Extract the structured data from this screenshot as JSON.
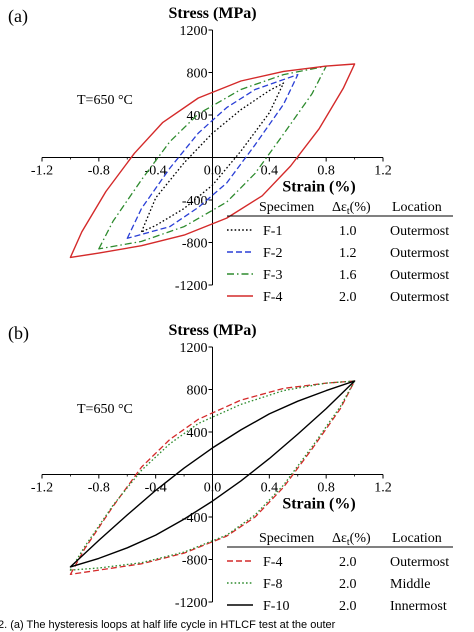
{
  "caption_fragment": "2. (a) The hysteresis loops at half life cycle in HTLCF test at the outer",
  "chart_data": [
    {
      "type": "line",
      "panel_label": "(a)",
      "annotation": "T=650 °C",
      "xlabel": "Strain (%)",
      "ylabel": "Stress (MPa)",
      "xlim": [
        -1.2,
        1.2
      ],
      "ylim": [
        -1200,
        1200
      ],
      "xticks": [
        "-1.2",
        "-0.8",
        "-0.4",
        "0.0",
        "0.4",
        "0.8",
        "1.2"
      ],
      "yticks": [
        "-1200",
        "-800",
        "-400",
        "0",
        "400",
        "800",
        "1200"
      ],
      "legend": {
        "headers": [
          "Specimen",
          "Δε_t(%)",
          "Location"
        ],
        "header_sym": "Δε",
        "header_sub": "t",
        "header_unit": "(%)"
      },
      "series": [
        {
          "name": "F-1",
          "strain_range": "1.0",
          "location": "Outermost",
          "color": "#000000",
          "dash": "dot",
          "top": [
            [
              -0.5,
              -700
            ],
            [
              -0.4,
              -380
            ],
            [
              -0.2,
              -50
            ],
            [
              0.0,
              230
            ],
            [
              0.2,
              450
            ],
            [
              0.4,
              630
            ],
            [
              0.5,
              700
            ]
          ],
          "bottom": [
            [
              0.5,
              700
            ],
            [
              0.4,
              420
            ],
            [
              0.2,
              60
            ],
            [
              0.0,
              -260
            ],
            [
              -0.2,
              -480
            ],
            [
              -0.4,
              -640
            ],
            [
              -0.5,
              -700
            ]
          ]
        },
        {
          "name": "F-2",
          "strain_range": "1.2",
          "location": "Outermost",
          "color": "#2a3fd6",
          "dash": "dash",
          "top": [
            [
              -0.6,
              -760
            ],
            [
              -0.5,
              -480
            ],
            [
              -0.3,
              -100
            ],
            [
              -0.1,
              230
            ],
            [
              0.1,
              470
            ],
            [
              0.3,
              640
            ],
            [
              0.6,
              780
            ]
          ],
          "bottom": [
            [
              0.6,
              780
            ],
            [
              0.5,
              500
            ],
            [
              0.3,
              120
            ],
            [
              0.1,
              -240
            ],
            [
              -0.1,
              -470
            ],
            [
              -0.3,
              -650
            ],
            [
              -0.6,
              -760
            ]
          ]
        },
        {
          "name": "F-3",
          "strain_range": "1.6",
          "location": "Outermost",
          "color": "#2e8b2e",
          "dash": "dashdot",
          "top": [
            [
              -0.8,
              -860
            ],
            [
              -0.7,
              -600
            ],
            [
              -0.5,
              -210
            ],
            [
              -0.3,
              150
            ],
            [
              -0.1,
              410
            ],
            [
              0.2,
              640
            ],
            [
              0.5,
              780
            ],
            [
              0.8,
              860
            ]
          ],
          "bottom": [
            [
              0.8,
              860
            ],
            [
              0.7,
              600
            ],
            [
              0.5,
              220
            ],
            [
              0.3,
              -150
            ],
            [
              0.1,
              -420
            ],
            [
              -0.2,
              -650
            ],
            [
              -0.5,
              -790
            ],
            [
              -0.8,
              -860
            ]
          ]
        },
        {
          "name": "F-4",
          "strain_range": "2.0",
          "location": "Outermost",
          "color": "#d42a2a",
          "dash": "solid",
          "top": [
            [
              -1.0,
              -940
            ],
            [
              -0.92,
              -700
            ],
            [
              -0.75,
              -320
            ],
            [
              -0.55,
              40
            ],
            [
              -0.35,
              330
            ],
            [
              -0.1,
              560
            ],
            [
              0.2,
              720
            ],
            [
              0.5,
              810
            ],
            [
              0.8,
              860
            ],
            [
              1.0,
              880
            ]
          ],
          "bottom": [
            [
              1.0,
              880
            ],
            [
              0.92,
              650
            ],
            [
              0.75,
              270
            ],
            [
              0.55,
              -80
            ],
            [
              0.35,
              -360
            ],
            [
              0.1,
              -570
            ],
            [
              -0.2,
              -730
            ],
            [
              -0.5,
              -830
            ],
            [
              -0.8,
              -900
            ],
            [
              -1.0,
              -940
            ]
          ]
        }
      ]
    },
    {
      "type": "line",
      "panel_label": "(b)",
      "annotation": "T=650 °C",
      "xlabel": "Strain (%)",
      "ylabel": "Stress (MPa)",
      "xlim": [
        -1.2,
        1.2
      ],
      "ylim": [
        -1200,
        1200
      ],
      "xticks": [
        "-1.2",
        "-0.8",
        "-0.4",
        "0.0",
        "0.4",
        "0.8",
        "1.2"
      ],
      "yticks": [
        "-1200",
        "-800",
        "-400",
        "0",
        "400",
        "800",
        "1200"
      ],
      "legend": {
        "headers": [
          "Specimen",
          "Δε_t(%)",
          "Location"
        ],
        "header_sym": "Δε",
        "header_sub": "t",
        "header_unit": "(%)"
      },
      "series": [
        {
          "name": "F-4",
          "strain_range": "2.0",
          "location": "Outermost",
          "color": "#d42a2a",
          "dash": "dash",
          "top": [
            [
              -1.0,
              -940
            ],
            [
              -0.9,
              -700
            ],
            [
              -0.7,
              -300
            ],
            [
              -0.5,
              70
            ],
            [
              -0.3,
              330
            ],
            [
              -0.1,
              520
            ],
            [
              0.2,
              700
            ],
            [
              0.5,
              810
            ],
            [
              0.8,
              860
            ],
            [
              1.0,
              880
            ]
          ],
          "bottom": [
            [
              1.0,
              880
            ],
            [
              0.9,
              620
            ],
            [
              0.7,
              240
            ],
            [
              0.5,
              -120
            ],
            [
              0.3,
              -400
            ],
            [
              0.1,
              -580
            ],
            [
              -0.2,
              -740
            ],
            [
              -0.5,
              -840
            ],
            [
              -0.8,
              -900
            ],
            [
              -1.0,
              -940
            ]
          ]
        },
        {
          "name": "F-8",
          "strain_range": "2.0",
          "location": "Middle",
          "color": "#2e8b2e",
          "dash": "dot",
          "top": [
            [
              -1.0,
              -900
            ],
            [
              -0.9,
              -680
            ],
            [
              -0.7,
              -290
            ],
            [
              -0.5,
              40
            ],
            [
              -0.3,
              290
            ],
            [
              -0.1,
              480
            ],
            [
              0.2,
              660
            ],
            [
              0.5,
              790
            ],
            [
              0.8,
              860
            ],
            [
              1.0,
              880
            ]
          ],
          "bottom": [
            [
              1.0,
              880
            ],
            [
              0.9,
              640
            ],
            [
              0.7,
              260
            ],
            [
              0.5,
              -100
            ],
            [
              0.3,
              -380
            ],
            [
              0.1,
              -570
            ],
            [
              -0.2,
              -730
            ],
            [
              -0.5,
              -830
            ],
            [
              -0.8,
              -880
            ],
            [
              -1.0,
              -900
            ]
          ]
        },
        {
          "name": "F-10",
          "strain_range": "2.0",
          "location": "Innermost",
          "color": "#000000",
          "dash": "solid",
          "top": [
            [
              -1.0,
              -870
            ],
            [
              -0.8,
              -620
            ],
            [
              -0.6,
              -380
            ],
            [
              -0.4,
              -150
            ],
            [
              -0.2,
              60
            ],
            [
              0.0,
              250
            ],
            [
              0.2,
              420
            ],
            [
              0.4,
              570
            ],
            [
              0.6,
              690
            ],
            [
              0.8,
              790
            ],
            [
              1.0,
              880
            ]
          ],
          "bottom": [
            [
              1.0,
              880
            ],
            [
              0.8,
              620
            ],
            [
              0.6,
              380
            ],
            [
              0.4,
              150
            ],
            [
              0.2,
              -60
            ],
            [
              0.0,
              -250
            ],
            [
              -0.2,
              -420
            ],
            [
              -0.4,
              -570
            ],
            [
              -0.6,
              -690
            ],
            [
              -0.8,
              -790
            ],
            [
              -1.0,
              -870
            ]
          ]
        }
      ]
    }
  ]
}
